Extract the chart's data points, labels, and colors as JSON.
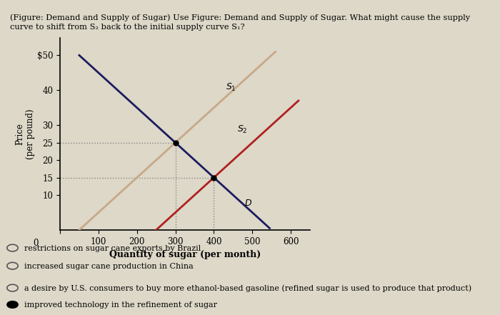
{
  "ylabel": "Price\n(per pound)",
  "xlabel": "Quantity of sugar (per month)",
  "xlim": [
    0,
    650
  ],
  "ylim": [
    0,
    55
  ],
  "xticks": [
    0,
    100,
    200,
    300,
    400,
    500,
    600
  ],
  "yticks": [
    10,
    15,
    20,
    25,
    30,
    40,
    50
  ],
  "ytick_labels": [
    "10",
    "15",
    "20",
    "25",
    "30",
    "40",
    "$50"
  ],
  "D_color": "#1c1c5e",
  "S1_color": "#c8a888",
  "S2_color": "#b02020",
  "dot_intersect1": [
    300,
    25
  ],
  "dot_intersect2": [
    400,
    15
  ],
  "dotline_color": "#888888",
  "background_color": "#ddd8c8",
  "title_line1": "(Figure: Demand and Supply of Sugar) Use Figure: Demand and Supply of Sugar. What might cause the supply",
  "title_line2": "curve to shift from S₂ back to the initial supply curve S₁?",
  "options": [
    {
      "text": "restrictions on sugar cane exports by Brazil",
      "selected": false
    },
    {
      "text": "increased sugar cane production in China",
      "selected": false
    },
    {
      "text": "a desire by U.S. consumers to buy more ethanol-based gasoline (refined sugar is used to produce that product)",
      "selected": false
    },
    {
      "text": "improved technology in the refinement of sugar",
      "selected": true
    }
  ]
}
